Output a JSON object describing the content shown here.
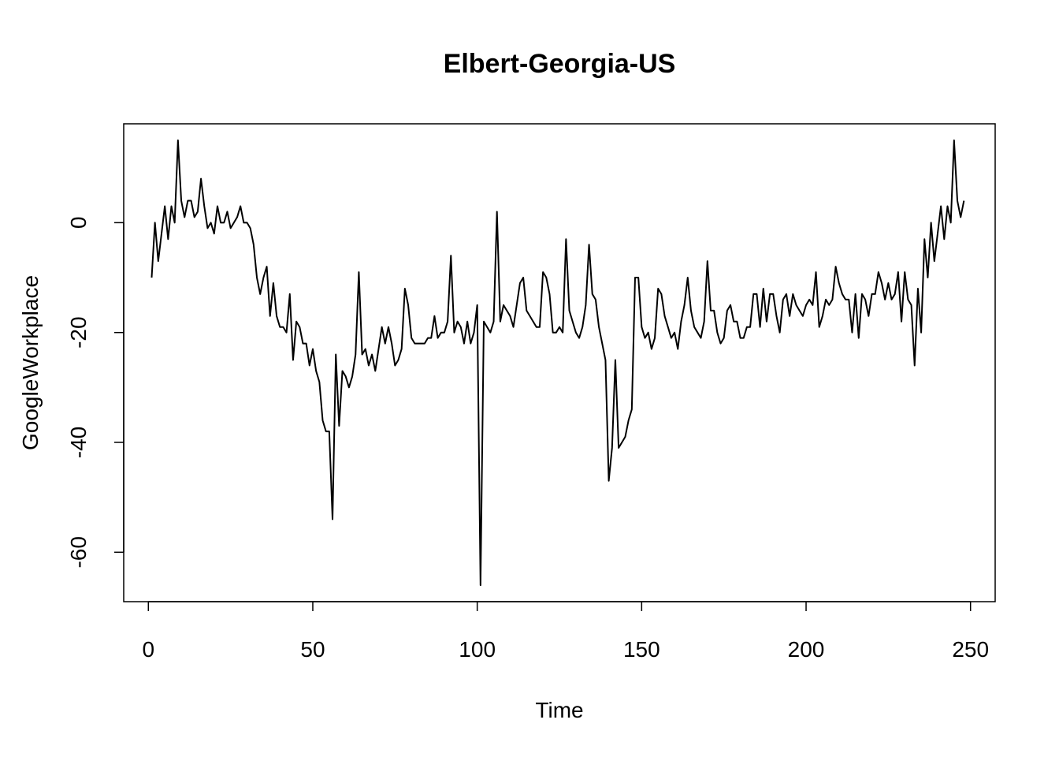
{
  "chart_data": {
    "type": "line",
    "title": "Elbert-Georgia-US",
    "xlabel": "Time",
    "ylabel": "GoogleWorkplace",
    "xlim": [
      -7.5,
      257.5
    ],
    "ylim": [
      -69,
      18
    ],
    "xticks": [
      0,
      50,
      100,
      150,
      200,
      250
    ],
    "yticks": [
      0,
      -20,
      -40,
      -60
    ],
    "grid": false,
    "legend": "none",
    "series": [
      {
        "x": [
          1,
          2,
          3,
          4,
          5,
          6,
          7,
          8,
          9,
          10,
          11,
          12,
          13,
          14,
          15,
          16,
          17,
          18,
          19,
          20,
          21,
          22,
          23,
          24,
          25,
          26,
          27,
          28,
          29,
          30,
          31,
          32,
          33,
          34,
          35,
          36,
          37,
          38,
          39,
          40,
          41,
          42,
          43,
          44,
          45,
          46,
          47,
          48,
          49,
          50,
          51,
          52,
          53,
          54,
          55,
          56,
          57,
          58,
          59,
          60,
          61,
          62,
          63,
          64,
          65,
          66,
          67,
          68,
          69,
          70,
          71,
          72,
          73,
          74,
          75,
          76,
          77,
          78,
          79,
          80,
          81,
          82,
          83,
          84,
          85,
          86,
          87,
          88,
          89,
          90,
          91,
          92,
          93,
          94,
          95,
          96,
          97,
          98,
          99,
          100,
          101,
          102,
          103,
          104,
          105,
          106,
          107,
          108,
          109,
          110,
          111,
          112,
          113,
          114,
          115,
          116,
          117,
          118,
          119,
          120,
          121,
          122,
          123,
          124,
          125,
          126,
          127,
          128,
          129,
          130,
          131,
          132,
          133,
          134,
          135,
          136,
          137,
          138,
          139,
          140,
          141,
          142,
          143,
          144,
          145,
          146,
          147,
          148,
          149,
          150,
          151,
          152,
          153,
          154,
          155,
          156,
          157,
          158,
          159,
          160,
          161,
          162,
          163,
          164,
          165,
          166,
          167,
          168,
          169,
          170,
          171,
          172,
          173,
          174,
          175,
          176,
          177,
          178,
          179,
          180,
          181,
          182,
          183,
          184,
          185,
          186,
          187,
          188,
          189,
          190,
          191,
          192,
          193,
          194,
          195,
          196,
          197,
          198,
          199,
          200,
          201,
          202,
          203,
          204,
          205,
          206,
          207,
          208,
          209,
          210,
          211,
          212,
          213,
          214,
          215,
          216,
          217,
          218,
          219,
          220,
          221,
          222,
          223,
          224,
          225,
          226,
          227,
          228,
          229,
          230,
          231,
          232,
          233,
          234,
          235,
          236,
          237,
          238,
          239,
          240,
          241,
          242,
          243,
          244,
          245,
          246,
          247,
          248
        ],
        "values": [
          -10,
          0,
          -7,
          -2,
          3,
          -3,
          3,
          0,
          15,
          4,
          1,
          4,
          4,
          1,
          2,
          8,
          3,
          -1,
          0,
          -2,
          3,
          0,
          0,
          2,
          -1,
          0,
          1,
          3,
          0,
          0,
          -1,
          -4,
          -10,
          -13,
          -10,
          -8,
          -17,
          -11,
          -17,
          -19,
          -19,
          -20,
          -13,
          -25,
          -18,
          -19,
          -22,
          -22,
          -26,
          -23,
          -27,
          -29,
          -36,
          -38,
          -38,
          -54,
          -24,
          -37,
          -27,
          -28,
          -30,
          -28,
          -24,
          -9,
          -24,
          -23,
          -26,
          -24,
          -27,
          -23,
          -19,
          -22,
          -19,
          -22,
          -26,
          -25,
          -23,
          -12,
          -15,
          -21,
          -22,
          -22,
          -22,
          -22,
          -21,
          -21,
          -17,
          -21,
          -20,
          -20,
          -18,
          -6,
          -20,
          -18,
          -19,
          -22,
          -18,
          -22,
          -20,
          -15,
          -66,
          -18,
          -19,
          -20,
          -18,
          2,
          -18,
          -15,
          -16,
          -17,
          -19,
          -15,
          -11,
          -10,
          -16,
          -17,
          -18,
          -19,
          -19,
          -9,
          -10,
          -13,
          -20,
          -20,
          -19,
          -20,
          -3,
          -16,
          -18,
          -20,
          -21,
          -19,
          -15,
          -4,
          -13,
          -14,
          -19,
          -22,
          -25,
          -47,
          -41,
          -25,
          -41,
          -40,
          -39,
          -36,
          -34,
          -10,
          -10,
          -19,
          -21,
          -20,
          -23,
          -21,
          -12,
          -13,
          -17,
          -19,
          -21,
          -20,
          -23,
          -18,
          -15,
          -10,
          -16,
          -19,
          -20,
          -21,
          -18,
          -7,
          -16,
          -16,
          -20,
          -22,
          -21,
          -16,
          -15,
          -18,
          -18,
          -21,
          -21,
          -19,
          -19,
          -13,
          -13,
          -19,
          -12,
          -18,
          -13,
          -13,
          -17,
          -20,
          -14,
          -13,
          -17,
          -13,
          -15,
          -16,
          -17,
          -15,
          -14,
          -15,
          -9,
          -19,
          -17,
          -14,
          -15,
          -14,
          -8,
          -11,
          -13,
          -14,
          -14,
          -20,
          -13,
          -21,
          -13,
          -14,
          -17,
          -13,
          -13,
          -9,
          -11,
          -14,
          -11,
          -14,
          -13,
          -9,
          -18,
          -9,
          -14,
          -15,
          -26,
          -12,
          -20,
          -3,
          -10,
          0,
          -7,
          -2,
          3,
          -3,
          3,
          0,
          15,
          4,
          1,
          4
        ]
      }
    ]
  }
}
